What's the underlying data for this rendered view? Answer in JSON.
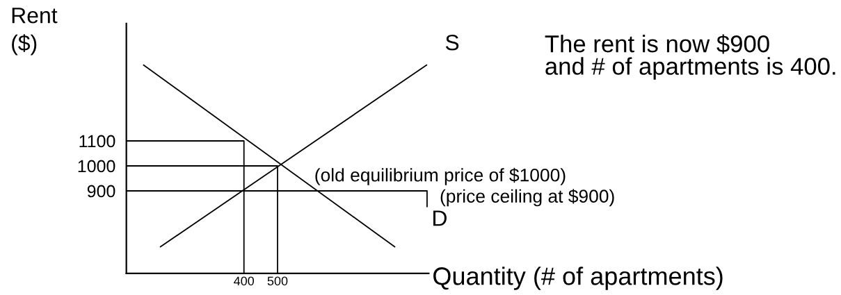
{
  "chart_data": {
    "type": "line",
    "series": [
      {
        "name": "S",
        "color": "#000000",
        "x": [
          150,
          945
        ],
        "values": [
          675,
          1405
        ]
      },
      {
        "name": "D",
        "color": "#000000",
        "x": [
          100,
          850
        ],
        "values": [
          1405,
          675
        ]
      },
      {
        "color": "#000000",
        "x": [
          50,
          400,
          400
        ],
        "values": [
          1100,
          1100,
          570
        ]
      },
      {
        "color": "#000000",
        "x": [
          50,
          500,
          500
        ],
        "values": [
          1000,
          1000,
          570
        ]
      },
      {
        "color": "#000000",
        "x": [
          50,
          945,
          945
        ],
        "values": [
          900,
          900,
          835
        ]
      }
    ],
    "xlim": [
      50,
      950
    ],
    "ylim": [
      570,
      1570
    ],
    "xticks": [
      400,
      500
    ],
    "yticks": [
      900,
      1000,
      1100
    ],
    "xlabel": "Quantity (# of apartments)",
    "ylabel": "Rent\n($)",
    "annotations": [
      {
        "text": "(old equilibrium price of $1000)",
        "x": 500,
        "y": 1000
      },
      {
        "text": "(price ceiling at $900)",
        "x": 945,
        "y": 900
      },
      "The rent is now $900\nand # of apartments is 400."
    ]
  }
}
